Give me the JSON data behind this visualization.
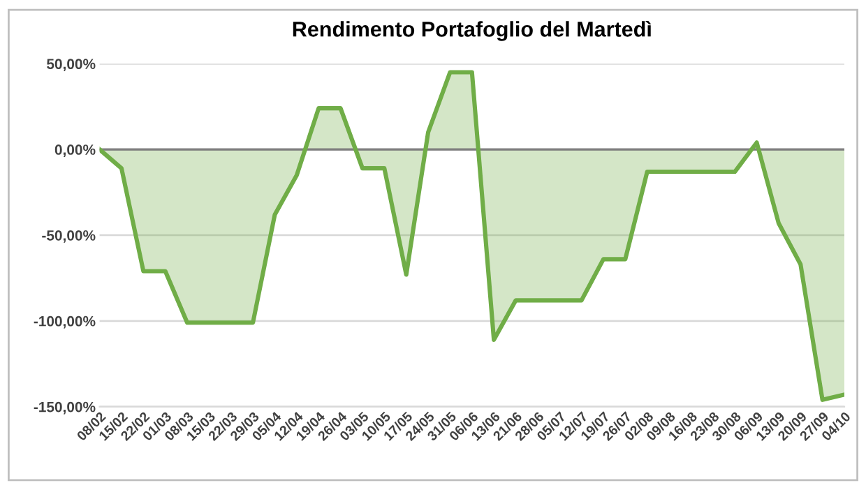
{
  "chart_data": {
    "type": "area",
    "title": "Rendimento Portafoglio del Martedì",
    "categories": [
      "08/02",
      "15/02",
      "22/02",
      "01/03",
      "08/03",
      "15/03",
      "22/03",
      "29/03",
      "05/04",
      "12/04",
      "19/04",
      "26/04",
      "03/05",
      "10/05",
      "17/05",
      "24/05",
      "31/05",
      "06/06",
      "13/06",
      "21/06",
      "28/06",
      "05/07",
      "12/07",
      "19/07",
      "26/07",
      "02/08",
      "09/08",
      "16/08",
      "23/08",
      "30/08",
      "06/09",
      "13/09",
      "20/09",
      "27/09",
      "04/10"
    ],
    "series": [
      {
        "color": "#70ad47",
        "values": [
          0,
          -11,
          -71,
          -71,
          -101,
          -101,
          -101,
          -101,
          -38,
          -15,
          24,
          24,
          -11,
          -11,
          -73,
          10,
          45,
          45,
          -111,
          -88,
          -88,
          -88,
          -88,
          -64,
          -64,
          -13,
          -13,
          -13,
          -13,
          -13,
          4,
          -43,
          -67,
          -146,
          -143
        ]
      }
    ],
    "ylim": [
      -150,
      50
    ],
    "yticks": [
      {
        "value": 50,
        "label": "50,00%"
      },
      {
        "value": 0,
        "label": "0,00%"
      },
      {
        "value": -50,
        "label": "-50,00%"
      },
      {
        "value": -100,
        "label": "-100,00%"
      },
      {
        "value": -150,
        "label": "-150,00%"
      }
    ],
    "grid": "y",
    "legend": false
  }
}
